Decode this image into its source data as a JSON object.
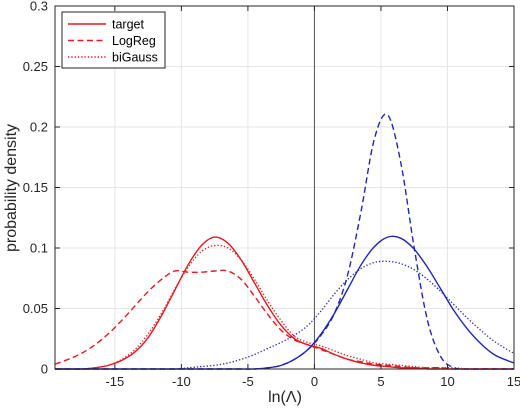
{
  "chart_data": {
    "type": "line",
    "title": "",
    "xlabel": "ln(Λ)",
    "ylabel": "probability density",
    "xlim": [
      -19.5,
      15
    ],
    "ylim": [
      0,
      0.3
    ],
    "xticks": [
      -15,
      -10,
      -5,
      0,
      5,
      10,
      15
    ],
    "yticks": [
      0,
      0.05,
      0.1,
      0.15,
      0.2,
      0.25,
      0.3
    ],
    "xtick_labels": [
      "-15",
      "-10",
      "-5",
      "0",
      "5",
      "10",
      "15"
    ],
    "ytick_labels": [
      "0",
      "0.05",
      "0.1",
      "0.15",
      "0.2",
      "0.25",
      "0.3"
    ],
    "grid": true,
    "vertical_reference_line": 0,
    "legend": {
      "placement": "top-left",
      "entries": [
        {
          "label": "target",
          "style": "solid"
        },
        {
          "label": "LogReg",
          "style": "dashed"
        },
        {
          "label": "biGauss",
          "style": "dotted"
        }
      ]
    },
    "colors": {
      "red": "#e8191f",
      "blue": "#1f27b8",
      "grid": "#e6e6e6",
      "axis": "#262626",
      "zero_line": "#555555"
    },
    "x": [
      -19.5,
      -18.5,
      -17.5,
      -16.5,
      -15.5,
      -14.5,
      -13.5,
      -12.5,
      -11.5,
      -10.5,
      -9.5,
      -8.5,
      -7.5,
      -6.5,
      -5.5,
      -4.5,
      -3.5,
      -2.5,
      -1.5,
      -0.5,
      0.5,
      1.5,
      2.5,
      3.5,
      4.5,
      5.5,
      6.5,
      7.5,
      8.5,
      9.5,
      10.5,
      11.5,
      12.5,
      13.5,
      14.5,
      15
    ],
    "series": [
      {
        "color": "red",
        "style": "solid",
        "values": [
          0.0,
          0.0,
          0.0,
          0.001,
          0.003,
          0.007,
          0.014,
          0.026,
          0.044,
          0.065,
          0.086,
          0.102,
          0.109,
          0.104,
          0.09,
          0.071,
          0.052,
          0.036,
          0.025,
          0.02,
          0.017,
          0.012,
          0.008,
          0.005,
          0.003,
          0.002,
          0.001,
          0.001,
          0.0,
          0.0,
          0.0,
          0.0,
          0.0,
          0.0,
          0.0,
          0.0
        ]
      },
      {
        "color": "red",
        "style": "dashed",
        "values": [
          0.004,
          0.008,
          0.013,
          0.02,
          0.029,
          0.04,
          0.052,
          0.064,
          0.074,
          0.081,
          0.08,
          0.08,
          0.081,
          0.081,
          0.074,
          0.06,
          0.045,
          0.032,
          0.024,
          0.02,
          0.016,
          0.012,
          0.008,
          0.006,
          0.004,
          0.003,
          0.002,
          0.001,
          0.001,
          0.001,
          0.0,
          0.0,
          0.0,
          0.0,
          0.0,
          0.0
        ]
      },
      {
        "color": "red",
        "style": "dotted",
        "values": [
          0.0,
          0.0,
          0.0,
          0.001,
          0.003,
          0.008,
          0.016,
          0.029,
          0.046,
          0.066,
          0.084,
          0.097,
          0.102,
          0.1,
          0.09,
          0.074,
          0.056,
          0.04,
          0.027,
          0.022,
          0.019,
          0.015,
          0.011,
          0.008,
          0.005,
          0.004,
          0.003,
          0.002,
          0.001,
          0.001,
          0.001,
          0.0,
          0.0,
          0.0,
          0.0,
          0.0
        ]
      },
      {
        "color": "blue",
        "style": "solid",
        "values": [
          0.0,
          0.0,
          0.0,
          0.0,
          0.0,
          0.0,
          0.0,
          0.0,
          0.0,
          0.0,
          0.0,
          0.0,
          0.0,
          0.0,
          0.0,
          0.0,
          0.001,
          0.003,
          0.008,
          0.016,
          0.029,
          0.046,
          0.066,
          0.086,
          0.101,
          0.109,
          0.108,
          0.099,
          0.084,
          0.066,
          0.048,
          0.033,
          0.021,
          0.012,
          0.007,
          0.005
        ]
      },
      {
        "color": "blue",
        "style": "dashed",
        "values": [
          0.0,
          0.0,
          0.0,
          0.0,
          0.0,
          0.0,
          0.0,
          0.0,
          0.0,
          0.0,
          0.0,
          0.0,
          0.0,
          0.0,
          0.0,
          0.0,
          0.001,
          0.003,
          0.008,
          0.016,
          0.028,
          0.046,
          0.078,
          0.13,
          0.19,
          0.21,
          0.17,
          0.1,
          0.04,
          0.01,
          0.001,
          0.0,
          0.0,
          0.0,
          0.0,
          0.0
        ]
      },
      {
        "color": "blue",
        "style": "dotted",
        "values": [
          0.0,
          0.0,
          0.0,
          0.0,
          0.0,
          0.0,
          0.0,
          0.0,
          0.0,
          0.0,
          0.001,
          0.002,
          0.003,
          0.005,
          0.008,
          0.012,
          0.017,
          0.022,
          0.028,
          0.036,
          0.048,
          0.062,
          0.074,
          0.083,
          0.088,
          0.089,
          0.087,
          0.082,
          0.074,
          0.064,
          0.053,
          0.042,
          0.032,
          0.023,
          0.016,
          0.013
        ]
      }
    ]
  }
}
